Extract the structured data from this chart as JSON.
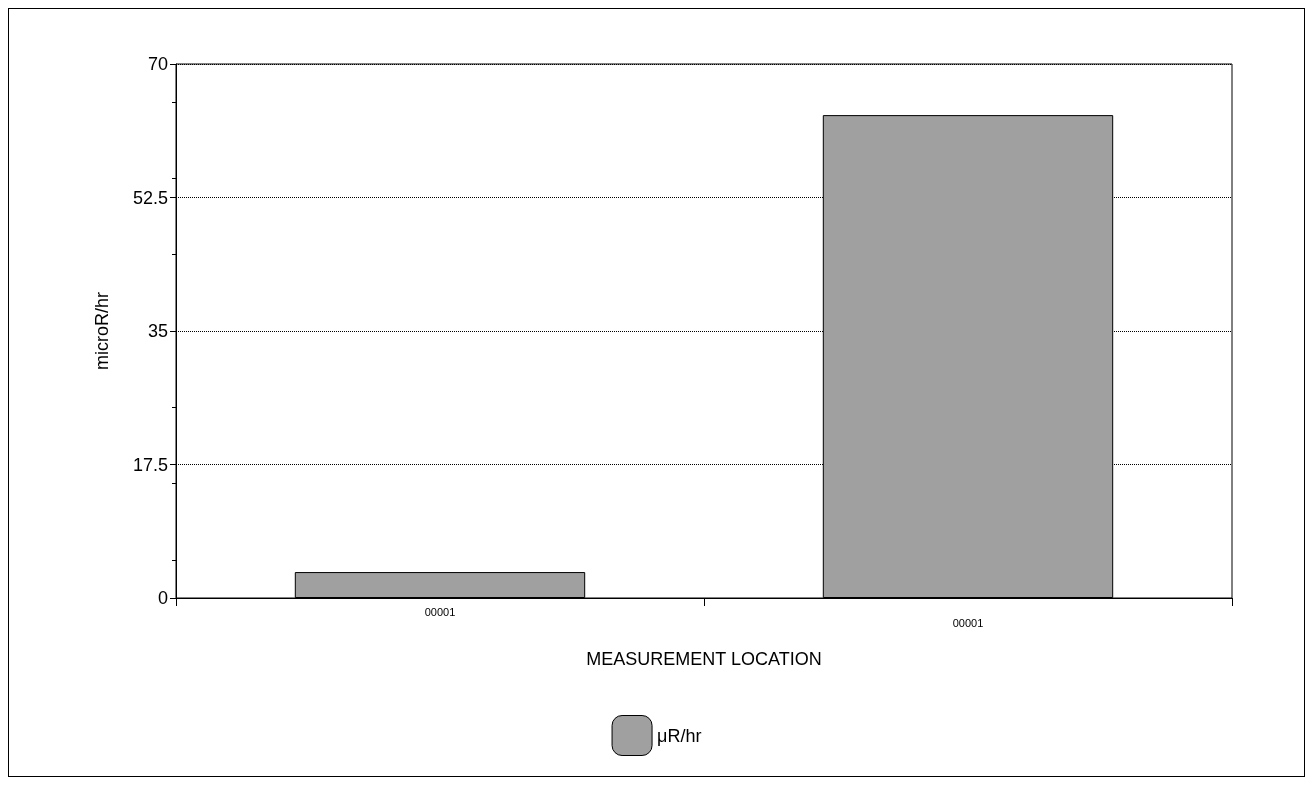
{
  "chart_data": {
    "type": "bar",
    "xlabel": "MEASUREMENT LOCATION",
    "ylabel": "microR/hr",
    "categories": [
      "00001",
      "00001"
    ],
    "series": [
      {
        "name": "μR/hr",
        "color": "#a0a0a0",
        "values": [
          3.4,
          63.3
        ]
      }
    ],
    "ylim": [
      0,
      70
    ],
    "yticks": [
      0,
      17.5,
      35,
      52.5,
      70
    ],
    "grid": "y",
    "legend": "bottom"
  }
}
